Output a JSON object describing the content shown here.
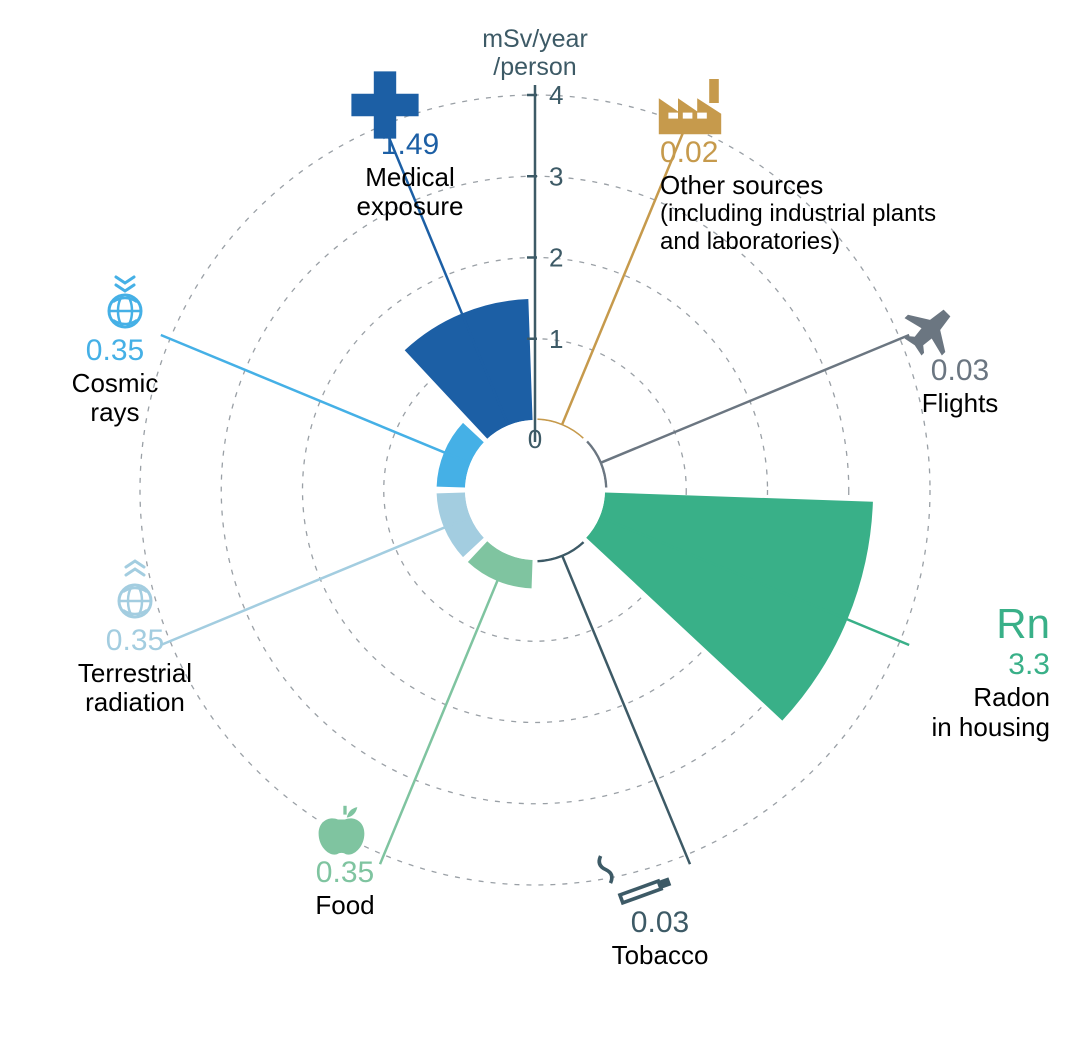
{
  "chart": {
    "type": "polar-bar",
    "unit_label_line1": "mSv/year",
    "unit_label_line2": "/person",
    "unit_label_color": "#3d5a66",
    "unit_label_fontsize": 25,
    "background_color": "#ffffff",
    "grid_color": "#9aa0a6",
    "grid_dash": "5 7",
    "axis_color": "#3d5a66",
    "axis_width": 2.5,
    "inner_radius": 70,
    "max_radius": 395,
    "value_max": 4,
    "ticks": [
      0,
      1,
      2,
      3,
      4
    ],
    "tick_fontsize": 26,
    "tick_color": "#3d5a66",
    "segments": [
      {
        "key": "other",
        "value": 0.02,
        "value_text": "0.02",
        "name": "Other sources",
        "sub": "(including industrial plants and laboratories)",
        "color": "#c69a4c",
        "icon": "factory"
      },
      {
        "key": "flights",
        "value": 0.03,
        "value_text": "0.03",
        "name": "Flights",
        "color": "#6b7681",
        "icon": "plane"
      },
      {
        "key": "radon",
        "value": 3.3,
        "value_text": "3.3",
        "name": "Radon in housing",
        "pre": "Rn",
        "color": "#39b088",
        "icon": "rn"
      },
      {
        "key": "tobacco",
        "value": 0.03,
        "value_text": "0.03",
        "name": "Tobacco",
        "color": "#3d5a66",
        "icon": "cigarette"
      },
      {
        "key": "food",
        "value": 0.35,
        "value_text": "0.35",
        "name": "Food",
        "color": "#7fc4a0",
        "icon": "apple"
      },
      {
        "key": "terrestrial",
        "value": 0.35,
        "value_text": "0.35",
        "name": "Terrestrial radiation",
        "color": "#a3cde0",
        "icon": "globe-up"
      },
      {
        "key": "cosmic",
        "value": 0.35,
        "value_text": "0.35",
        "name": "Cosmic rays",
        "color": "#45b0e6",
        "icon": "globe-down"
      },
      {
        "key": "medical",
        "value": 1.49,
        "value_text": "1.49",
        "name": "Medical exposure",
        "color": "#1c5fa5",
        "icon": "cross"
      }
    ],
    "label_value_fontsize": 30,
    "label_name_fontsize": 26,
    "label_sub_fontsize": 24
  }
}
